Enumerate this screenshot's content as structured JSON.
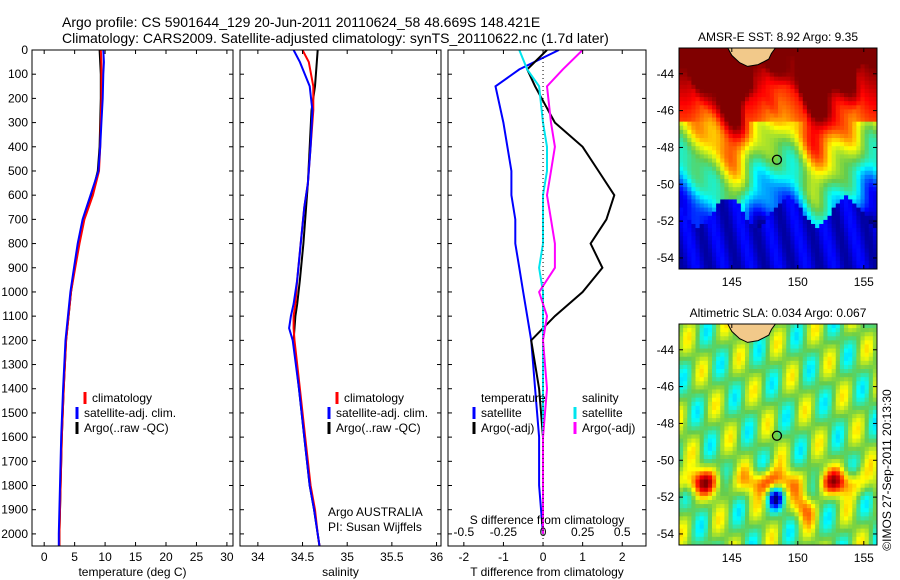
{
  "header": {
    "line1": "Argo profile: CS 5901644_129 20-Jun-2011 20110624_58 48.669S 148.421E",
    "line2": "Climatology: CARS2009. Satellite-adjusted climatology: synTS_20110622.nc (1.7d later)"
  },
  "watermark": "©IMOS 27-Sep-2011 20:13:30",
  "colors": {
    "climatology": "#ff0000",
    "satellite": "#0000ff",
    "argo": "#000000",
    "satellite_salinity": "#00e5ee",
    "argo_adj_salinity": "#ff00ff"
  },
  "chart_data": [
    {
      "id": "temperature",
      "type": "line",
      "xlabel": "temperature (deg C)",
      "ylabel": "",
      "xlim": [
        -2,
        31
      ],
      "ylim": [
        2050,
        0
      ],
      "xticks": [
        "0",
        "5",
        "10",
        "15",
        "20",
        "25",
        "30"
      ],
      "xtick_values": [
        0,
        5,
        10,
        15,
        20,
        25,
        30
      ],
      "yticks": [
        "0",
        "100",
        "200",
        "300",
        "400",
        "500",
        "600",
        "700",
        "800",
        "900",
        "1000",
        "1100",
        "1200",
        "1300",
        "1400",
        "1500",
        "1600",
        "1700",
        "1800",
        "1900",
        "2000"
      ],
      "ytick_values": [
        0,
        100,
        200,
        300,
        400,
        500,
        600,
        700,
        800,
        900,
        1000,
        1100,
        1200,
        1300,
        1400,
        1500,
        1600,
        1700,
        1800,
        1900,
        2000
      ],
      "legend": [
        "climatology",
        "satellite-adj. clim.",
        "Argo(..raw -QC)"
      ],
      "series": [
        {
          "name": "Argo(..raw -QC)",
          "color": "#000000",
          "x": [
            9.1,
            9.2,
            9.3,
            9.3,
            9.2,
            9.1,
            8.8,
            7.8,
            6.4,
            5.6,
            5.0,
            4.4,
            3.6,
            3.2,
            2.9,
            2.7,
            2.5,
            2.5
          ],
          "y": [
            0,
            50,
            100,
            200,
            300,
            400,
            500,
            600,
            700,
            800,
            900,
            1000,
            1200,
            1400,
            1600,
            1800,
            2000,
            2050
          ]
        },
        {
          "name": "climatology",
          "color": "#ff0000",
          "x": [
            9.3,
            9.4,
            9.4,
            9.4,
            9.3,
            9.2,
            9.0,
            8.0,
            6.6,
            5.8,
            5.1,
            4.4,
            3.6,
            3.2,
            2.9,
            2.7,
            2.5,
            2.5
          ],
          "y": [
            0,
            50,
            100,
            200,
            300,
            400,
            500,
            600,
            700,
            800,
            900,
            1000,
            1200,
            1400,
            1600,
            1800,
            2000,
            2050
          ]
        },
        {
          "name": "satellite-adj. clim.",
          "color": "#0000ff",
          "x": [
            9.7,
            9.8,
            9.7,
            9.6,
            9.4,
            9.2,
            8.9,
            7.6,
            6.3,
            5.5,
            4.9,
            4.3,
            3.5,
            3.1,
            2.8,
            2.6,
            2.4,
            2.4
          ],
          "y": [
            0,
            50,
            100,
            200,
            300,
            400,
            500,
            600,
            700,
            800,
            900,
            1000,
            1200,
            1400,
            1600,
            1800,
            2000,
            2050
          ]
        }
      ]
    },
    {
      "id": "salinity",
      "type": "line",
      "xlabel": "salinity",
      "xlim": [
        33.8,
        36.05
      ],
      "ylim": [
        2050,
        0
      ],
      "xticks": [
        "34",
        "34.5",
        "35",
        "35.5",
        "36"
      ],
      "xtick_values": [
        34,
        34.5,
        35,
        35.5,
        36
      ],
      "legend": [
        "climatology",
        "satellite-adj. clim.",
        "Argo(..raw -QC)"
      ],
      "annotation": [
        "Argo AUSTRALIA",
        "PI: Susan Wijffels"
      ],
      "series": [
        {
          "name": "Argo(..raw -QC)",
          "color": "#000000",
          "x": [
            34.67,
            34.66,
            34.64,
            34.6,
            34.58,
            34.56,
            34.54,
            34.51,
            34.47,
            34.44,
            34.42,
            34.41,
            34.4,
            34.46,
            34.52,
            34.58,
            34.63,
            34.67,
            34.69
          ],
          "y": [
            0,
            50,
            150,
            250,
            400,
            550,
            650,
            800,
            950,
            1050,
            1100,
            1150,
            1200,
            1400,
            1600,
            1800,
            1900,
            2000,
            2050
          ]
        },
        {
          "name": "climatology",
          "color": "#ff0000",
          "x": [
            34.5,
            34.57,
            34.62,
            34.62,
            34.59,
            34.56,
            34.52,
            34.48,
            34.44,
            34.42,
            34.4,
            34.4,
            34.41,
            34.47,
            34.53,
            34.59,
            34.64,
            34.67,
            34.69
          ],
          "y": [
            0,
            50,
            150,
            250,
            400,
            550,
            650,
            800,
            950,
            1050,
            1100,
            1150,
            1200,
            1400,
            1600,
            1800,
            1900,
            2000,
            2050
          ]
        },
        {
          "name": "satellite-adj. clim.",
          "color": "#0000ff",
          "x": [
            34.4,
            34.47,
            34.58,
            34.61,
            34.59,
            34.56,
            34.52,
            34.48,
            34.44,
            34.4,
            34.37,
            34.35,
            34.39,
            34.46,
            34.52,
            34.58,
            34.63,
            34.67,
            34.69
          ],
          "y": [
            0,
            50,
            150,
            250,
            400,
            550,
            650,
            800,
            950,
            1050,
            1100,
            1150,
            1200,
            1400,
            1600,
            1800,
            1900,
            2000,
            2050
          ]
        }
      ]
    },
    {
      "id": "difference",
      "type": "line",
      "xlabel": "T difference from climatology",
      "xlabel2": "S difference from climatology",
      "xlim": [
        -2.4,
        2.6
      ],
      "ylim": [
        2050,
        0
      ],
      "xticks": [
        "-2",
        "-1",
        "0",
        "1",
        "2"
      ],
      "xtick_values": [
        -2,
        -1,
        0,
        1,
        2
      ],
      "xticks2": [
        "-0.5",
        "-0.25",
        "0",
        "0.25",
        "0.5"
      ],
      "xtick2_values": [
        -0.5,
        -0.25,
        0,
        0.25,
        0.5
      ],
      "legend_temperature_title": "temperature",
      "legend_salinity_title": "salinity",
      "legend": [
        "satellite",
        "Argo(-adj)",
        "satellite",
        "Argo(-adj)"
      ],
      "series": [
        {
          "name": "satellite",
          "group": "temperature",
          "color": "#0000ff",
          "x": [
            0.4,
            -0.6,
            -1.2,
            -1.0,
            -0.9,
            -0.8,
            -0.8,
            -0.7,
            -0.7,
            -0.6,
            -0.5,
            -0.4,
            -0.3,
            -0.2,
            -0.1,
            -0.1,
            0.0
          ],
          "y": [
            0,
            80,
            150,
            300,
            400,
            500,
            600,
            700,
            800,
            900,
            1000,
            1100,
            1200,
            1400,
            1600,
            1800,
            2000
          ]
        },
        {
          "name": "Argo(-adj)",
          "group": "temperature",
          "color": "#000000",
          "x": [
            0.1,
            -0.4,
            -0.2,
            0.3,
            1.0,
            1.4,
            1.8,
            1.6,
            1.2,
            1.5,
            1.0,
            0.3,
            -0.3,
            -0.1,
            0.0,
            0.0,
            0.0
          ],
          "y": [
            0,
            80,
            150,
            300,
            400,
            500,
            600,
            700,
            800,
            900,
            1000,
            1100,
            1200,
            1400,
            1600,
            1800,
            2000
          ]
        },
        {
          "name": "satellite",
          "group": "salinity",
          "color": "#00e5ee",
          "x": [
            -0.6,
            -0.4,
            -0.1,
            0.0,
            0.1,
            0.1,
            0.0,
            0.0,
            0.0,
            -0.1,
            0.0,
            0.0,
            0.0,
            0.0,
            0.0,
            0.0,
            0.0
          ],
          "y": [
            0,
            80,
            150,
            300,
            400,
            500,
            600,
            700,
            800,
            900,
            1000,
            1100,
            1200,
            1400,
            1600,
            1800,
            2000
          ]
        },
        {
          "name": "Argo(-adj)",
          "group": "salinity",
          "color": "#ff00ff",
          "x": [
            1.0,
            0.5,
            0.1,
            0.2,
            0.3,
            0.2,
            0.1,
            0.2,
            0.3,
            0.3,
            -0.1,
            0.1,
            0.0,
            0.1,
            0.0,
            0.0,
            0.0
          ],
          "y": [
            0,
            80,
            150,
            300,
            400,
            500,
            600,
            700,
            800,
            900,
            1000,
            1100,
            1200,
            1400,
            1600,
            1800,
            2000
          ]
        }
      ]
    },
    {
      "id": "sst_map",
      "type": "heatmap",
      "title": "AMSR-E SST: 8.92 Argo: 9.35",
      "xlim": [
        141,
        156
      ],
      "ylim": [
        -54.6,
        -42.6
      ],
      "xticks": [
        "145",
        "150",
        "155"
      ],
      "xtick_values": [
        145,
        150,
        155
      ],
      "yticks": [
        "-44",
        "-46",
        "-48",
        "-50",
        "-52",
        "-54"
      ],
      "ytick_values": [
        -44,
        -46,
        -48,
        -50,
        -52,
        -54
      ],
      "float_position": {
        "lon": 148.421,
        "lat": -48.669
      }
    },
    {
      "id": "sla_map",
      "type": "heatmap",
      "title": "Altimetric SLA: 0.034 Argo: 0.067",
      "xlim": [
        141,
        156
      ],
      "ylim": [
        -54.6,
        -42.6
      ],
      "xticks": [
        "145",
        "150",
        "155"
      ],
      "xtick_values": [
        145,
        150,
        155
      ],
      "yticks": [
        "-44",
        "-46",
        "-48",
        "-50",
        "-52",
        "-54"
      ],
      "ytick_values": [
        -44,
        -46,
        -48,
        -50,
        -52,
        -54
      ],
      "float_position": {
        "lon": 148.421,
        "lat": -48.669
      }
    }
  ]
}
